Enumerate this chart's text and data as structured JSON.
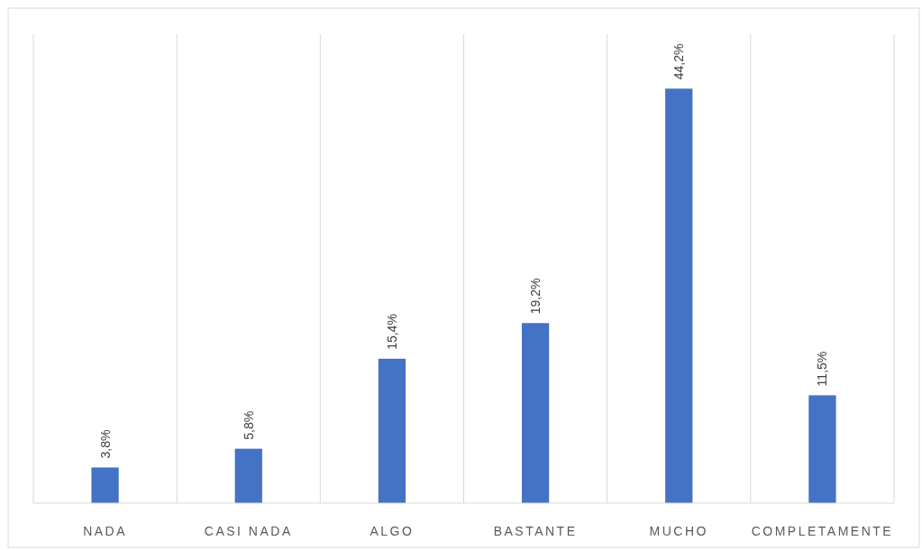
{
  "chart_data": {
    "type": "bar",
    "categories": [
      "NADA",
      "CASI NADA",
      "ALGO",
      "BASTANTE",
      "MUCHO",
      "COMPLETAMENTE"
    ],
    "values": [
      3.8,
      5.8,
      15.4,
      19.2,
      44.2,
      11.5
    ],
    "value_labels": [
      "3,8%",
      "5,8%",
      "15,4%",
      "19,2%",
      "44,2%",
      "11,5%"
    ],
    "color": "#4472c4",
    "ylim": [
      0,
      50
    ],
    "grid": "x",
    "tick_labels": "x"
  }
}
